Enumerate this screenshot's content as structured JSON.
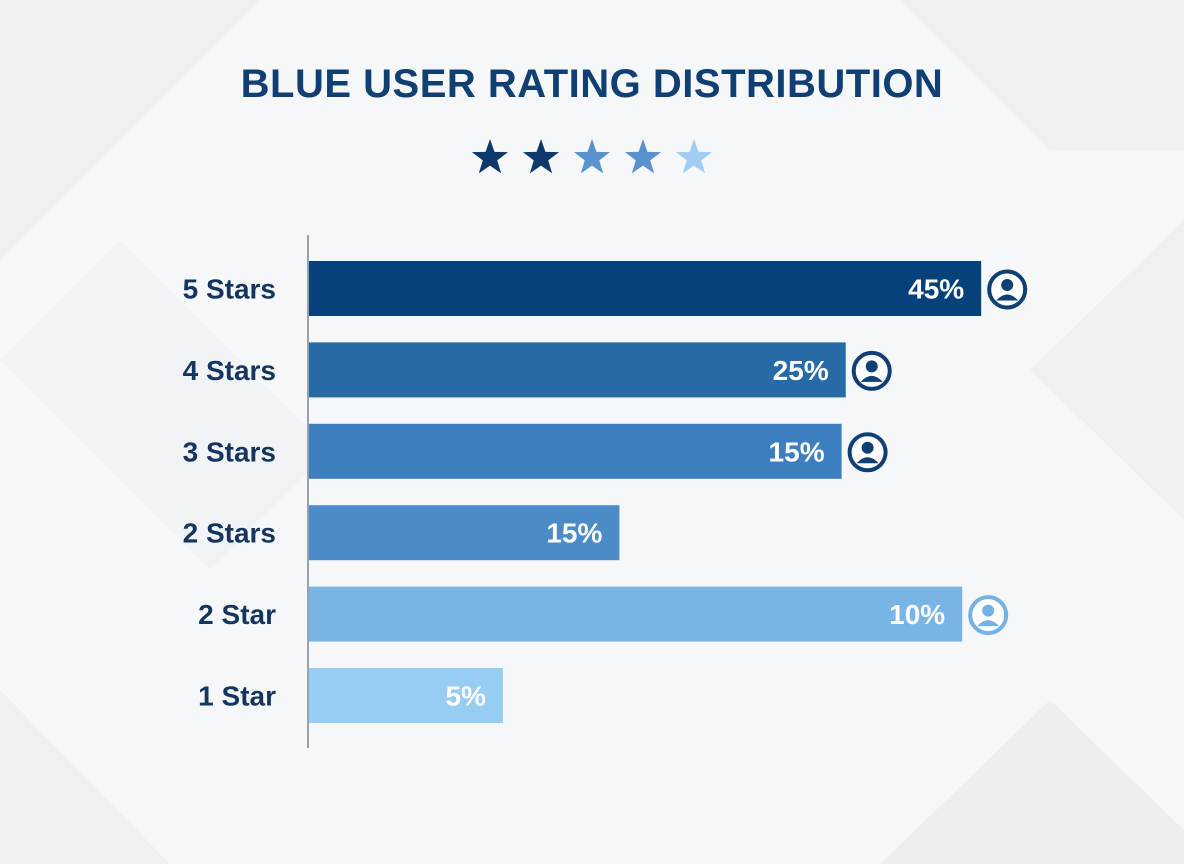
{
  "colors": {
    "title": "#0f3f73",
    "label": "#14365e",
    "axis": "#9aa1a8",
    "value_text": "#ffffff",
    "icon": "#0f3f73",
    "star_colors": [
      "#0d3a6b",
      "#0d3a6b",
      "#5a92ce",
      "#5a92ce",
      "#9fcdf3"
    ]
  },
  "header_stars": [
    "star-icon",
    "star-icon",
    "star-icon",
    "star-icon",
    "star-icon"
  ],
  "chart_data": {
    "type": "bar",
    "orientation": "horizontal",
    "title": "BLUE USER RATING DISTRIBUTION",
    "categories": [
      "5 Stars",
      "4 Stars",
      "3 Stars",
      "2 Stars",
      "2 Star",
      "1 Star"
    ],
    "values": [
      45,
      25,
      15,
      15,
      10,
      5
    ],
    "value_labels": [
      "45%",
      "25%",
      "15%",
      "15%",
      "10%",
      "5%"
    ],
    "bar_fractions": [
      0.815,
      0.651,
      0.646,
      0.377,
      0.792,
      0.236
    ],
    "bar_colors": [
      "#06427a",
      "#266aa6",
      "#3c7fbf",
      "#4a8bc8",
      "#78b5e6",
      "#98cdf3"
    ],
    "user_icon": [
      true,
      true,
      true,
      false,
      true,
      false
    ],
    "user_icon_colors": [
      "#0f3f73",
      "#0f3f73",
      "#0f3f73",
      null,
      "#74b2e5",
      null
    ],
    "grid": false,
    "legend": "none"
  }
}
